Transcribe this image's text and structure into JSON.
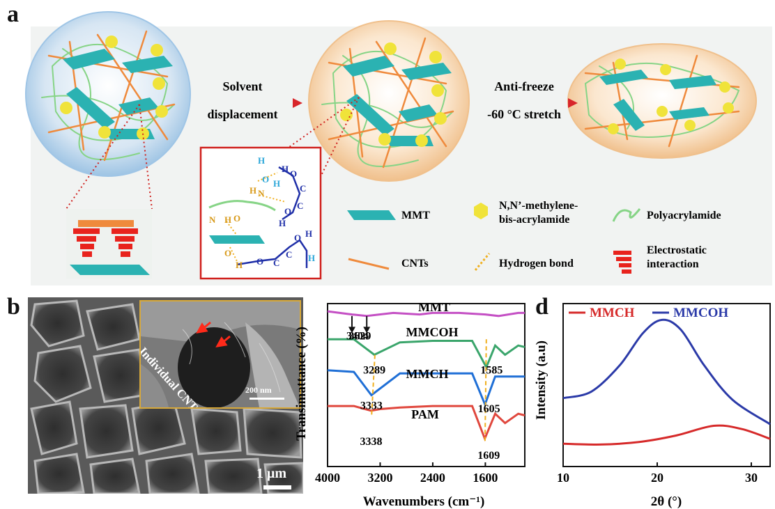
{
  "panel_a": {
    "letter": "a",
    "arrow1": {
      "line1": "Solvent",
      "line2": "displacement"
    },
    "arrow2": {
      "line1": "Anti-freeze",
      "line2": "-60 °C stretch"
    },
    "molecular_labels": {
      "h": "H",
      "o": "O",
      "c": "C",
      "n": "N"
    },
    "legend": {
      "mmt": "MMT",
      "crosslinker_line1": "N,N’-methylene-",
      "crosslinker_line2": "bis-acrylamide",
      "polyacrylamide": "Polyacrylamide",
      "cnts": "CNTs",
      "hydrogen_bond": "Hydrogen bond",
      "electrostatic_line1": "Electrostatic",
      "electrostatic_line2": "interaction"
    },
    "colors": {
      "mmt": "#2bb2b2",
      "cnts": "#ef8a3c",
      "crosslinker": "#f0e33a",
      "polyacrylamide": "#86d486",
      "electrostatic": "#e8231d",
      "zoom_box": "#d0201d"
    }
  },
  "panel_b": {
    "letter": "b",
    "inset_label": "Individual CNTs",
    "inset_scale": "200 nm",
    "scale": "1 μm"
  },
  "chart_data": [
    {
      "panel": "c",
      "type": "line",
      "xlabel": "Wavenumbers (cm⁻¹)",
      "ylabel": "Transimattance (%)",
      "xlim": [
        4000,
        1000
      ],
      "x_ticks": [
        4000,
        3200,
        2400,
        1600
      ],
      "series": [
        {
          "name": "MMT",
          "color": "#c44fc4",
          "x": [
            4000,
            3629,
            3404,
            3000,
            2600,
            2400,
            2000,
            1600,
            1400,
            1100,
            1000
          ],
          "y": [
            100,
            98,
            97,
            99,
            98,
            99,
            99,
            98,
            97,
            99,
            99
          ]
        },
        {
          "name": "MMCOH",
          "color": "#3aa56b",
          "x": [
            4000,
            3600,
            3289,
            2900,
            2400,
            1800,
            1585,
            1450,
            1300,
            1100,
            1000
          ],
          "y": [
            82,
            82,
            72,
            80,
            81,
            81,
            64,
            78,
            72,
            78,
            77
          ]
        },
        {
          "name": "MMCH",
          "color": "#1f6fd6",
          "x": [
            4000,
            3600,
            3333,
            2900,
            2400,
            1800,
            1605,
            1450,
            1200,
            1000
          ],
          "y": [
            62,
            61,
            46,
            60,
            60,
            60,
            40,
            58,
            58,
            58
          ]
        },
        {
          "name": "PAM",
          "color": "#e0473d",
          "x": [
            4000,
            3600,
            3338,
            3200,
            2900,
            2400,
            1800,
            1609,
            1450,
            1300,
            1100,
            1000
          ],
          "y": [
            39,
            39,
            36,
            37,
            38,
            39,
            39,
            18,
            34,
            28,
            34,
            33
          ]
        }
      ],
      "annotations": [
        "3629",
        "3404",
        "3289",
        "1585",
        "3333",
        "1605",
        "3338",
        "1609"
      ]
    },
    {
      "panel": "d",
      "type": "line",
      "xlabel": "2θ (°)",
      "ylabel": "Intensity (a.u)",
      "xlim": [
        10,
        32
      ],
      "x_ticks": [
        10,
        20,
        30
      ],
      "series": [
        {
          "name": "MMCH",
          "color": "#d62a2a",
          "x": [
            10,
            14,
            18,
            22,
            26,
            29,
            32
          ],
          "y": [
            14,
            13.5,
            15,
            19,
            25,
            23,
            17
          ]
        },
        {
          "name": "MMCOH",
          "color": "#2b3aa8",
          "x": [
            10,
            13,
            16,
            18.5,
            20.5,
            22.5,
            25,
            28,
            32
          ],
          "y": [
            42,
            46,
            62,
            82,
            90,
            84,
            62,
            41,
            26
          ]
        }
      ]
    }
  ]
}
